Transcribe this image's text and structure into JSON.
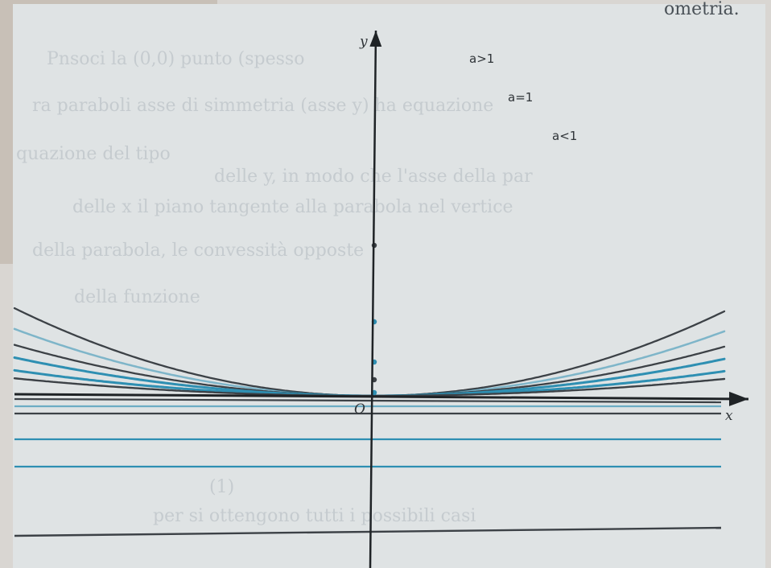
{
  "header_fragment": "ometria.",
  "ghost_lines": [
    "Pnsoci la (0,0) punto (spesso",
    "ra paraboli  asse di simmetria (asse y) ha equazione",
    "quazione del tipo",
    "delle y, in modo che l'asse della par",
    "delle x il piano tangente alla parabola nel vertice",
    "della parabola, le convessità opposte",
    "della funzione",
    "(1)",
    "per si ottengono tutti i possibili casi"
  ],
  "labels": {
    "a_gt_1": "a>1",
    "a_eq_1": "a=1",
    "a_lt_1": "a<1",
    "x_axis": "x",
    "y_axis": "y",
    "origin": "O"
  },
  "colors": {
    "paper": "#dfe3e4",
    "page_corner": "#c7bfb7",
    "blue": "#2e8fb2",
    "gray": "#3c4146",
    "axis": "#1f2326"
  },
  "chart_data": {
    "type": "line",
    "title": "",
    "xlabel": "x",
    "ylabel": "y",
    "series": [
      {
        "name": "a>1",
        "color": "gray",
        "k": 0.00055
      },
      {
        "name": "",
        "color": "blue",
        "k": 0.00042
      },
      {
        "name": "a=1",
        "color": "gray",
        "k": 0.00032
      },
      {
        "name": "a<1",
        "color": "blue",
        "k": 0.00024
      },
      {
        "name": "",
        "color": "blue",
        "k": 0.00016
      },
      {
        "name": "",
        "color": "gray",
        "k": 0.00011
      }
    ],
    "y_axis_points": [
      1,
      2,
      3,
      4,
      5
    ],
    "horizontal_lines": [
      {
        "color": "blue",
        "y": 0
      },
      {
        "color": "gray",
        "y": 0
      },
      {
        "color": "blue",
        "y": 0
      },
      {
        "color": "blue",
        "y": 0
      },
      {
        "color": "gray",
        "y": 0
      }
    ]
  }
}
